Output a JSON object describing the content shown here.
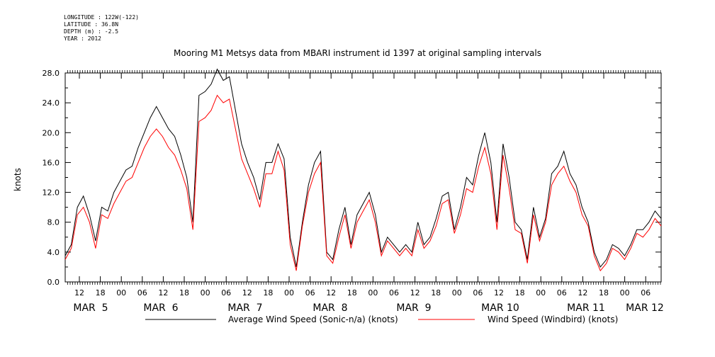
{
  "metadata": {
    "longitude": "LONGITUDE : 122W(-122)",
    "latitude": "LATITUDE : 36.8N",
    "depth": "DEPTH (m) : -2.5",
    "year": "YEAR : 2012"
  },
  "chart_data": {
    "type": "line",
    "title": "Mooring M1 Metsys data from MBARI instrument id 1397 at original sampling intervals",
    "ylabel": "knots",
    "xlabel": "",
    "ylim": [
      0,
      28.0
    ],
    "yticks": [
      "0.0",
      "4.0",
      "8.0",
      "12.0",
      "16.0",
      "20.0",
      "24.0",
      "28.0"
    ],
    "xlim_hours": [
      0,
      120
    ],
    "x_tick_labels": [
      "12",
      "18",
      "00",
      "06",
      "12",
      "18",
      "00",
      "06",
      "12",
      "18",
      "00",
      "06",
      "12",
      "18",
      "00",
      "06",
      "12",
      "18",
      "00",
      "06",
      "12",
      "18",
      "00",
      "06",
      "12",
      "18",
      "00",
      "06"
    ],
    "date_labels": [
      "MAR  5",
      "MAR  6",
      "MAR  7",
      "MAR  8",
      "MAR  9",
      "MAR 10",
      "MAR 11",
      "MAR 12"
    ],
    "grid": false,
    "legend_position": "bottom",
    "series": [
      {
        "name": "Average Wind Speed (Sonic-n/a) (knots)",
        "color": "#000000",
        "values": [
          3.5,
          5.0,
          10.0,
          11.5,
          9.0,
          5.5,
          10.0,
          9.5,
          12.0,
          13.5,
          15.0,
          15.5,
          18.0,
          20.0,
          22.0,
          23.5,
          22.0,
          20.5,
          19.5,
          17.0,
          14.0,
          8.0,
          25.0,
          25.5,
          26.5,
          28.5,
          27.0,
          27.5,
          23.0,
          18.5,
          16.0,
          14.0,
          11.0,
          16.0,
          16.0,
          18.5,
          16.5,
          6.0,
          2.0,
          8.0,
          13.0,
          16.0,
          17.5,
          4.0,
          3.0,
          7.0,
          10.0,
          5.0,
          9.0,
          10.5,
          12.0,
          9.0,
          4.0,
          6.0,
          5.0,
          4.0,
          5.0,
          4.0,
          8.0,
          5.0,
          6.0,
          8.5,
          11.5,
          12.0,
          7.0,
          10.0,
          14.0,
          13.0,
          17.0,
          20.0,
          16.0,
          8.0,
          18.5,
          14.0,
          8.0,
          7.0,
          3.0,
          10.0,
          6.0,
          8.5,
          14.5,
          15.5,
          17.5,
          14.5,
          13.0,
          10.0,
          8.0,
          4.0,
          2.0,
          3.0,
          5.0,
          4.5,
          3.5,
          5.0,
          7.0,
          7.0,
          8.0,
          9.5,
          8.5
        ]
      },
      {
        "name": "Wind Speed (Windbird) (knots)",
        "color": "#ff0000",
        "values": [
          3.0,
          4.5,
          9.0,
          10.0,
          8.0,
          4.5,
          9.0,
          8.5,
          10.5,
          12.0,
          13.5,
          14.0,
          16.0,
          18.0,
          19.5,
          20.5,
          19.5,
          18.0,
          17.0,
          15.0,
          12.5,
          7.0,
          21.5,
          22.0,
          23.0,
          25.0,
          24.0,
          24.5,
          20.5,
          16.5,
          14.5,
          12.5,
          10.0,
          14.5,
          14.5,
          17.5,
          15.0,
          5.0,
          1.5,
          7.5,
          12.0,
          14.5,
          16.0,
          3.5,
          2.5,
          6.0,
          9.0,
          4.5,
          8.0,
          9.5,
          11.0,
          8.0,
          3.5,
          5.5,
          4.5,
          3.5,
          4.5,
          3.5,
          7.0,
          4.5,
          5.5,
          7.5,
          10.5,
          11.0,
          6.5,
          9.0,
          12.5,
          12.0,
          15.5,
          18.0,
          14.5,
          7.0,
          17.0,
          12.5,
          7.0,
          6.5,
          2.5,
          9.0,
          5.5,
          8.0,
          13.0,
          14.5,
          15.5,
          13.5,
          12.0,
          9.0,
          7.5,
          3.5,
          1.5,
          2.5,
          4.5,
          4.0,
          3.0,
          4.5,
          6.5,
          6.0,
          7.0,
          8.5,
          7.5
        ]
      }
    ]
  }
}
